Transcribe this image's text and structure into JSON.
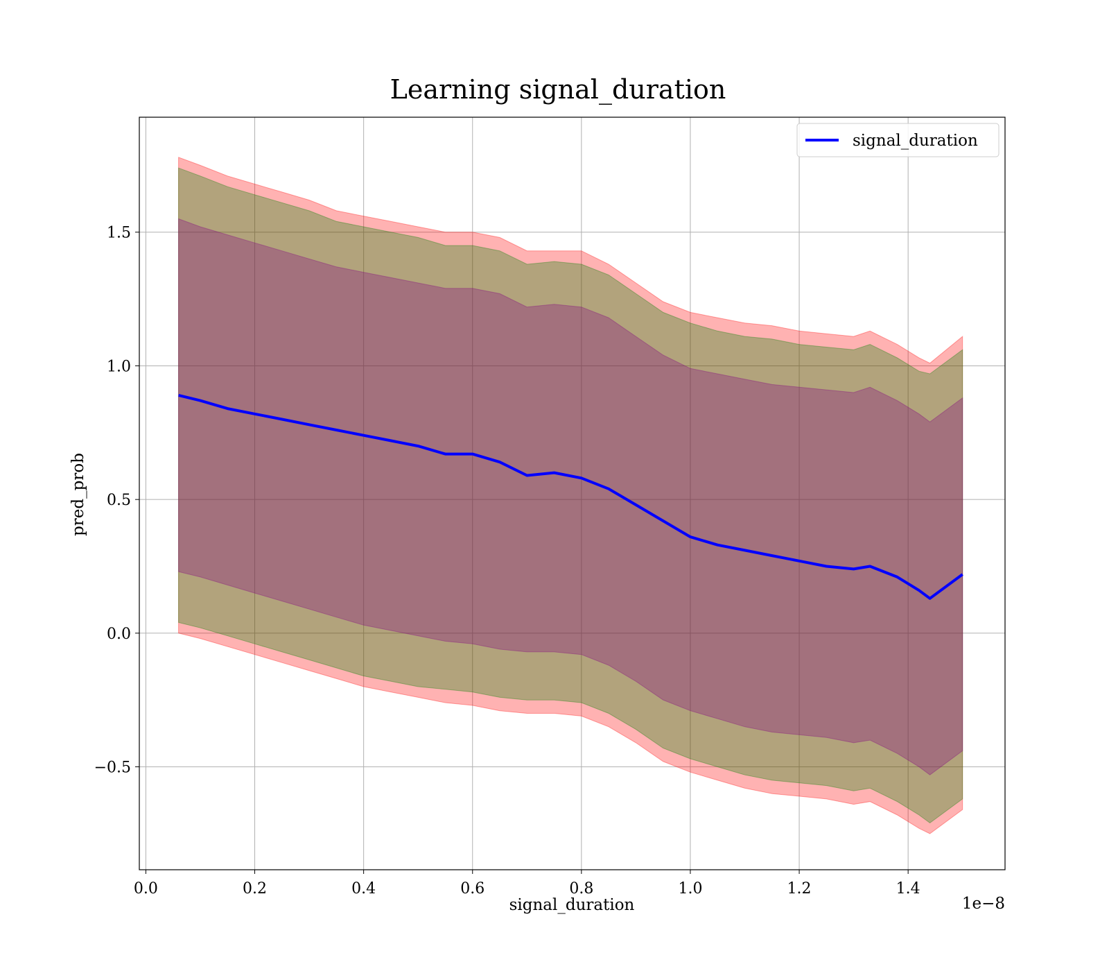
{
  "chart_data": {
    "type": "line",
    "title": "Learning signal_duration",
    "xlabel": "signal_duration",
    "ylabel": "pred_prob",
    "x_offset_label": "1e−8",
    "xlim": [
      -0.012,
      1.578
    ],
    "ylim": [
      -0.885,
      1.93
    ],
    "xticks": [
      0.0,
      0.2,
      0.4,
      0.6,
      0.8,
      1.0,
      1.2,
      1.4
    ],
    "xtick_labels": [
      "0.0",
      "0.2",
      "0.4",
      "0.6",
      "0.8",
      "1.0",
      "1.2",
      "1.4"
    ],
    "yticks": [
      -0.5,
      0.0,
      0.5,
      1.0,
      1.5
    ],
    "ytick_labels": [
      "−0.5",
      "0.0",
      "0.5",
      "1.0",
      "1.5"
    ],
    "grid": true,
    "legend": {
      "placement": "top-right",
      "entries": [
        "signal_duration"
      ]
    },
    "series": [
      {
        "name": "signal_duration",
        "color": "#0000ff",
        "x": [
          0.06,
          0.1,
          0.15,
          0.2,
          0.25,
          0.3,
          0.35,
          0.4,
          0.45,
          0.5,
          0.55,
          0.6,
          0.65,
          0.7,
          0.75,
          0.8,
          0.85,
          0.9,
          0.95,
          1.0,
          1.05,
          1.1,
          1.15,
          1.2,
          1.25,
          1.3,
          1.33,
          1.38,
          1.42,
          1.44,
          1.5
        ],
        "y": [
          0.89,
          0.87,
          0.84,
          0.82,
          0.8,
          0.78,
          0.76,
          0.74,
          0.72,
          0.7,
          0.67,
          0.67,
          0.64,
          0.59,
          0.6,
          0.58,
          0.54,
          0.48,
          0.42,
          0.36,
          0.33,
          0.31,
          0.29,
          0.27,
          0.25,
          0.24,
          0.25,
          0.21,
          0.16,
          0.13,
          0.22
        ]
      }
    ],
    "bands": [
      {
        "color": "#ff0000",
        "opacity": 0.3,
        "x": [
          0.06,
          0.1,
          0.15,
          0.2,
          0.25,
          0.3,
          0.35,
          0.4,
          0.45,
          0.5,
          0.55,
          0.6,
          0.65,
          0.7,
          0.75,
          0.8,
          0.85,
          0.9,
          0.95,
          1.0,
          1.05,
          1.1,
          1.15,
          1.2,
          1.25,
          1.3,
          1.33,
          1.38,
          1.42,
          1.44,
          1.5
        ],
        "upper": [
          1.78,
          1.75,
          1.71,
          1.68,
          1.65,
          1.62,
          1.58,
          1.56,
          1.54,
          1.52,
          1.5,
          1.5,
          1.48,
          1.43,
          1.43,
          1.43,
          1.38,
          1.31,
          1.24,
          1.2,
          1.18,
          1.16,
          1.15,
          1.13,
          1.12,
          1.11,
          1.13,
          1.08,
          1.03,
          1.01,
          1.11
        ],
        "lower": [
          0.0,
          -0.02,
          -0.05,
          -0.08,
          -0.11,
          -0.14,
          -0.17,
          -0.2,
          -0.22,
          -0.24,
          -0.26,
          -0.27,
          -0.29,
          -0.3,
          -0.3,
          -0.31,
          -0.35,
          -0.41,
          -0.48,
          -0.52,
          -0.55,
          -0.58,
          -0.6,
          -0.61,
          -0.62,
          -0.64,
          -0.63,
          -0.68,
          -0.73,
          -0.75,
          -0.66
        ]
      },
      {
        "color": "#008000",
        "opacity": 0.3,
        "x": [
          0.06,
          0.1,
          0.15,
          0.2,
          0.25,
          0.3,
          0.35,
          0.4,
          0.45,
          0.5,
          0.55,
          0.6,
          0.65,
          0.7,
          0.75,
          0.8,
          0.85,
          0.9,
          0.95,
          1.0,
          1.05,
          1.1,
          1.15,
          1.2,
          1.25,
          1.3,
          1.33,
          1.38,
          1.42,
          1.44,
          1.5
        ],
        "upper": [
          1.74,
          1.71,
          1.67,
          1.64,
          1.61,
          1.58,
          1.54,
          1.52,
          1.5,
          1.48,
          1.45,
          1.45,
          1.43,
          1.38,
          1.39,
          1.38,
          1.34,
          1.27,
          1.2,
          1.16,
          1.13,
          1.11,
          1.1,
          1.08,
          1.07,
          1.06,
          1.08,
          1.03,
          0.98,
          0.97,
          1.06
        ],
        "lower": [
          0.04,
          0.02,
          -0.01,
          -0.04,
          -0.07,
          -0.1,
          -0.13,
          -0.16,
          -0.18,
          -0.2,
          -0.21,
          -0.22,
          -0.24,
          -0.25,
          -0.25,
          -0.26,
          -0.3,
          -0.36,
          -0.43,
          -0.47,
          -0.5,
          -0.53,
          -0.55,
          -0.56,
          -0.57,
          -0.59,
          -0.58,
          -0.63,
          -0.68,
          -0.71,
          -0.62
        ]
      },
      {
        "color": "#800080",
        "opacity": 0.3,
        "x": [
          0.06,
          0.1,
          0.15,
          0.2,
          0.25,
          0.3,
          0.35,
          0.4,
          0.45,
          0.5,
          0.55,
          0.6,
          0.65,
          0.7,
          0.75,
          0.8,
          0.85,
          0.9,
          0.95,
          1.0,
          1.05,
          1.1,
          1.15,
          1.2,
          1.25,
          1.3,
          1.33,
          1.38,
          1.42,
          1.44,
          1.5
        ],
        "upper": [
          1.55,
          1.52,
          1.49,
          1.46,
          1.43,
          1.4,
          1.37,
          1.35,
          1.33,
          1.31,
          1.29,
          1.29,
          1.27,
          1.22,
          1.23,
          1.22,
          1.18,
          1.11,
          1.04,
          0.99,
          0.97,
          0.95,
          0.93,
          0.92,
          0.91,
          0.9,
          0.92,
          0.87,
          0.82,
          0.79,
          0.88
        ],
        "lower": [
          0.23,
          0.21,
          0.18,
          0.15,
          0.12,
          0.09,
          0.06,
          0.03,
          0.01,
          -0.01,
          -0.03,
          -0.04,
          -0.06,
          -0.07,
          -0.07,
          -0.08,
          -0.12,
          -0.18,
          -0.25,
          -0.29,
          -0.32,
          -0.35,
          -0.37,
          -0.38,
          -0.39,
          -0.41,
          -0.4,
          -0.45,
          -0.5,
          -0.53,
          -0.44
        ]
      }
    ]
  }
}
